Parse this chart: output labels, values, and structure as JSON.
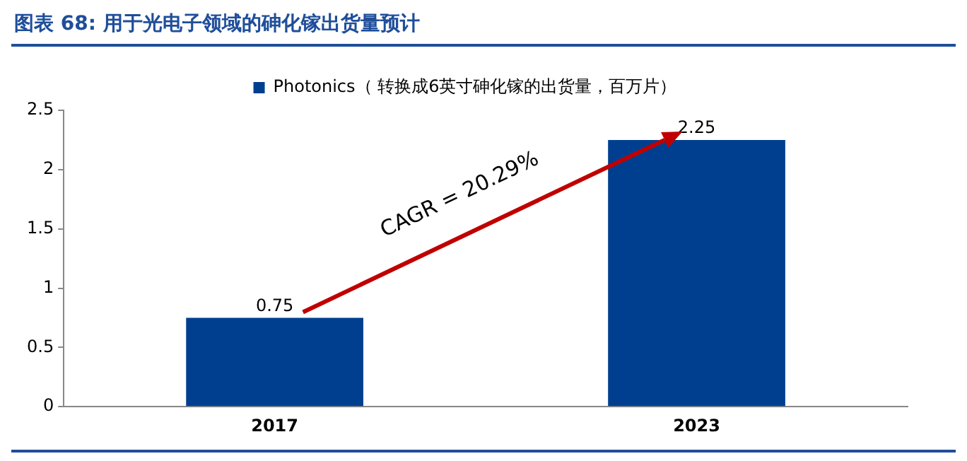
{
  "chart_data": {
    "type": "bar",
    "title": "图表 68: 用于光电子领域的砷化镓出货量预计",
    "categories": [
      "2017",
      "2023"
    ],
    "series": [
      {
        "name": "Photonics（ 转换成6英寸砷化镓的出货量，百万片）",
        "color": "#003f8f",
        "values": [
          0.75,
          2.25
        ]
      }
    ],
    "ylim": [
      0,
      2.5
    ],
    "yticks": [
      0,
      0.5,
      1,
      1.5,
      2,
      2.5
    ],
    "grid": false,
    "legend": "top",
    "data_labels": true,
    "annotations": [
      "CAGR = 20.29%"
    ]
  }
}
